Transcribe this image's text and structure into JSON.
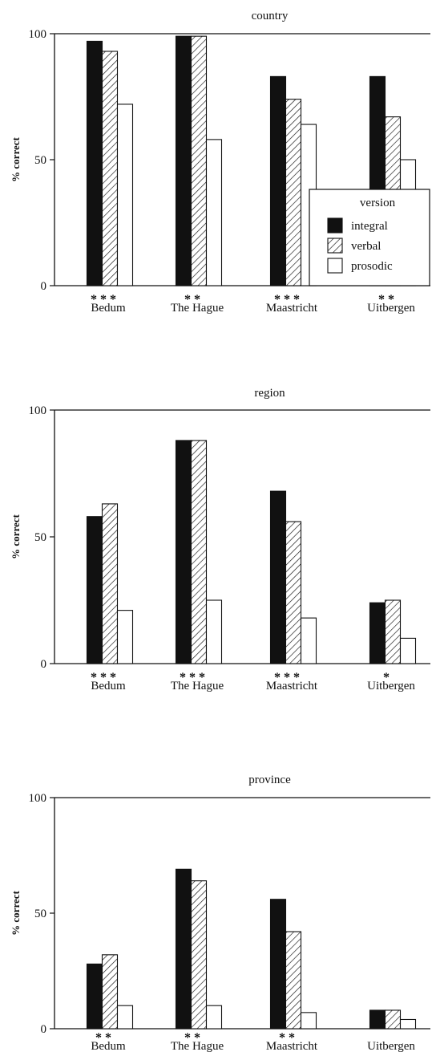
{
  "chart_data": [
    {
      "type": "bar",
      "title": "country",
      "ylabel": "% correct",
      "xlabel": "",
      "ylim": [
        0,
        100
      ],
      "yticks": [
        0,
        50,
        100
      ],
      "categories": [
        "Bedum",
        "The Hague",
        "Maastricht",
        "Uitbergen"
      ],
      "series": [
        {
          "name": "integral",
          "values": [
            97,
            99,
            83,
            83
          ]
        },
        {
          "name": "verbal",
          "values": [
            93,
            99,
            74,
            67
          ]
        },
        {
          "name": "prosodic",
          "values": [
            72,
            58,
            64,
            50
          ]
        }
      ],
      "significance": [
        "* * *",
        "* *",
        "* * *",
        "* *"
      ],
      "legend": {
        "title": "version",
        "position": "bottom-right",
        "entries": [
          "integral",
          "verbal",
          "prosodic"
        ]
      },
      "grid": false
    },
    {
      "type": "bar",
      "title": "region",
      "ylabel": "% correct",
      "xlabel": "",
      "ylim": [
        0,
        100
      ],
      "yticks": [
        0,
        50,
        100
      ],
      "categories": [
        "Bedum",
        "The Hague",
        "Maastricht",
        "Uitbergen"
      ],
      "series": [
        {
          "name": "integral",
          "values": [
            58,
            88,
            68,
            24
          ]
        },
        {
          "name": "verbal",
          "values": [
            63,
            88,
            56,
            25
          ]
        },
        {
          "name": "prosodic",
          "values": [
            21,
            25,
            18,
            10
          ]
        }
      ],
      "significance": [
        "* * *",
        "* * *",
        "* * *",
        "*"
      ],
      "grid": false
    },
    {
      "type": "bar",
      "title": "province",
      "ylabel": "% correct",
      "xlabel": "",
      "ylim": [
        0,
        100
      ],
      "yticks": [
        0,
        50,
        100
      ],
      "categories": [
        "Bedum",
        "The Hague",
        "Maastricht",
        "Uitbergen"
      ],
      "series": [
        {
          "name": "integral",
          "values": [
            28,
            69,
            56,
            8
          ]
        },
        {
          "name": "verbal",
          "values": [
            32,
            64,
            42,
            8
          ]
        },
        {
          "name": "prosodic",
          "values": [
            10,
            10,
            7,
            4
          ]
        }
      ],
      "significance": [
        "* *",
        "* *",
        "* *",
        ""
      ],
      "grid": false
    }
  ]
}
